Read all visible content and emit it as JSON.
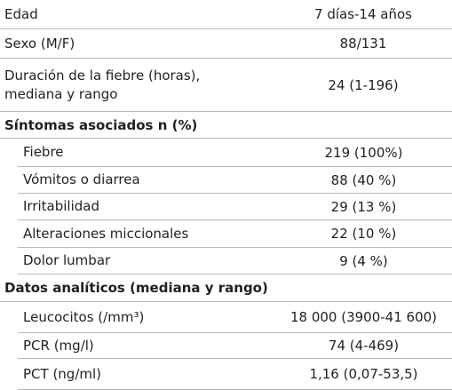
{
  "table": {
    "rows": [
      {
        "label": "Edad",
        "value": "7 días-14 años"
      },
      {
        "label": "Sexo (M/F)",
        "value": "88/131"
      },
      {
        "label": "Duración de la fiebre (horas),\nmediana y rango",
        "value": "24 (1-196)"
      }
    ],
    "sections": [
      {
        "title": "Síntomas asociados n (%)",
        "rows": [
          {
            "label": "Fiebre",
            "value": "219 (100%)"
          },
          {
            "label": "Vómitos o diarrea",
            "value": "88 (40 %)"
          },
          {
            "label": "Irritabilidad",
            "value": "29 (13 %)"
          },
          {
            "label": "Alteraciones miccionales",
            "value": "22 (10 %)"
          },
          {
            "label": "Dolor lumbar",
            "value": "9 (4 %)"
          }
        ]
      },
      {
        "title": "Datos analíticos (mediana y rango)",
        "rows": [
          {
            "label": "Leucocitos (/mm³)",
            "value": "18 000 (3900-41 600)"
          },
          {
            "label": "PCR (mg/l)",
            "value": "74 (4-469)"
          },
          {
            "label": "PCT (ng/ml)",
            "value": "1,16 (0,07-53,5)"
          }
        ]
      }
    ]
  }
}
